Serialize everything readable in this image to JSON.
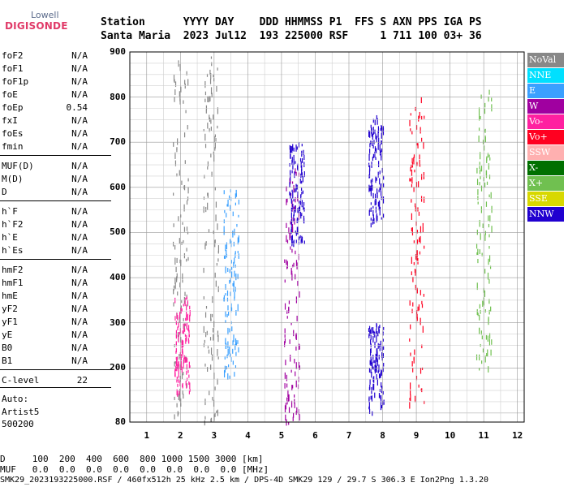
{
  "logo": {
    "brand": "Lowell",
    "product": "DIGISONDE"
  },
  "header": {
    "line1": "Station      YYYY DAY    DDD HHMMSS P1  FFS S AXN PPS IGA PS",
    "line2": "Santa Maria  2023 Jul12  193 225000 RSF     1 711 100 03+ 36"
  },
  "params": [
    {
      "name": "foF2",
      "value": "N/A"
    },
    {
      "name": "foF1",
      "value": "N/A"
    },
    {
      "name": "foF1p",
      "value": "N/A"
    },
    {
      "name": "foE",
      "value": "N/A"
    },
    {
      "name": "foEp",
      "value": "0.54"
    },
    {
      "name": "fxI",
      "value": "N/A"
    },
    {
      "name": "foEs",
      "value": "N/A"
    },
    {
      "name": "fmin",
      "value": "N/A"
    },
    {
      "name": "MUF(D)",
      "value": "N/A"
    },
    {
      "name": "M(D)",
      "value": "N/A"
    },
    {
      "name": "D",
      "value": "N/A"
    },
    {
      "name": "h`F",
      "value": "N/A"
    },
    {
      "name": "h`F2",
      "value": "N/A"
    },
    {
      "name": "h`E",
      "value": "N/A"
    },
    {
      "name": "h`Es",
      "value": "N/A"
    },
    {
      "name": "hmF2",
      "value": "N/A"
    },
    {
      "name": "hmF1",
      "value": "N/A"
    },
    {
      "name": "hmE",
      "value": "N/A"
    },
    {
      "name": "yF2",
      "value": "N/A"
    },
    {
      "name": "yF1",
      "value": "N/A"
    },
    {
      "name": "yE",
      "value": "N/A"
    },
    {
      "name": "B0",
      "value": "N/A"
    },
    {
      "name": "B1",
      "value": "N/A"
    },
    {
      "name": "C-level",
      "value": "22"
    }
  ],
  "auto": {
    "line1": "Auto:",
    "line2": "Artist5",
    "line3": "500200"
  },
  "legend": [
    {
      "label": "NoVal",
      "color": "#888888"
    },
    {
      "label": "NNE",
      "color": "#00e0ff"
    },
    {
      "label": "E",
      "color": "#3aa0ff"
    },
    {
      "label": "W",
      "color": "#a000a0"
    },
    {
      "label": "Vo-",
      "color": "#ff20a0"
    },
    {
      "label": "Vo+",
      "color": "#ff0020"
    },
    {
      "label": "SSW",
      "color": "#ffb0b0"
    },
    {
      "label": "X-",
      "color": "#007000"
    },
    {
      "label": "X+",
      "color": "#70c050"
    },
    {
      "label": "SSE",
      "color": "#d8d800"
    },
    {
      "label": "NNW",
      "color": "#2000d0"
    }
  ],
  "chart_data": {
    "type": "scatter",
    "xlabel": "",
    "ylabel": "",
    "xlim": [
      0.5,
      12.2
    ],
    "ylim": [
      80,
      900
    ],
    "xticks": [
      1,
      2,
      3,
      4,
      5,
      6,
      7,
      8,
      9,
      10,
      11,
      12
    ],
    "yticks": [
      80,
      200,
      300,
      400,
      500,
      600,
      700,
      800,
      900
    ],
    "grid": true,
    "clusters": [
      {
        "x": 2.0,
        "y": [
          80,
          900
        ],
        "color": "#888888"
      },
      {
        "x": 2.05,
        "y": [
          150,
          360
        ],
        "color": "#ff20a0"
      },
      {
        "x": 2.9,
        "y": [
          80,
          900
        ],
        "color": "#888888"
      },
      {
        "x": 3.5,
        "y": [
          180,
          600
        ],
        "color": "#3aa0ff"
      },
      {
        "x": 5.3,
        "y": [
          80,
          650
        ],
        "color": "#a000a0"
      },
      {
        "x": 5.45,
        "y": [
          480,
          700
        ],
        "color": "#2000d0"
      },
      {
        "x": 7.8,
        "y": [
          100,
          300
        ],
        "color": "#2000d0"
      },
      {
        "x": 7.8,
        "y": [
          520,
          760
        ],
        "color": "#2000d0"
      },
      {
        "x": 9.0,
        "y": [
          120,
          800
        ],
        "color": "#ff0020"
      },
      {
        "x": 11.0,
        "y": [
          200,
          820
        ],
        "color": "#70c050"
      }
    ]
  },
  "footer": {
    "d_row": "D     100  200  400  600  800 1000 1500 3000 [km]",
    "muf_row": "MUF   0.0  0.0  0.0  0.0  0.0  0.0  0.0  0.0 [MHz]",
    "info": "SMK29_2023193225000.RSF / 460fx512h 25 kHz 2.5 km / DPS-4D SMK29 129 / 29.7 S 306.3 E Ion2Png 1.3.20"
  }
}
